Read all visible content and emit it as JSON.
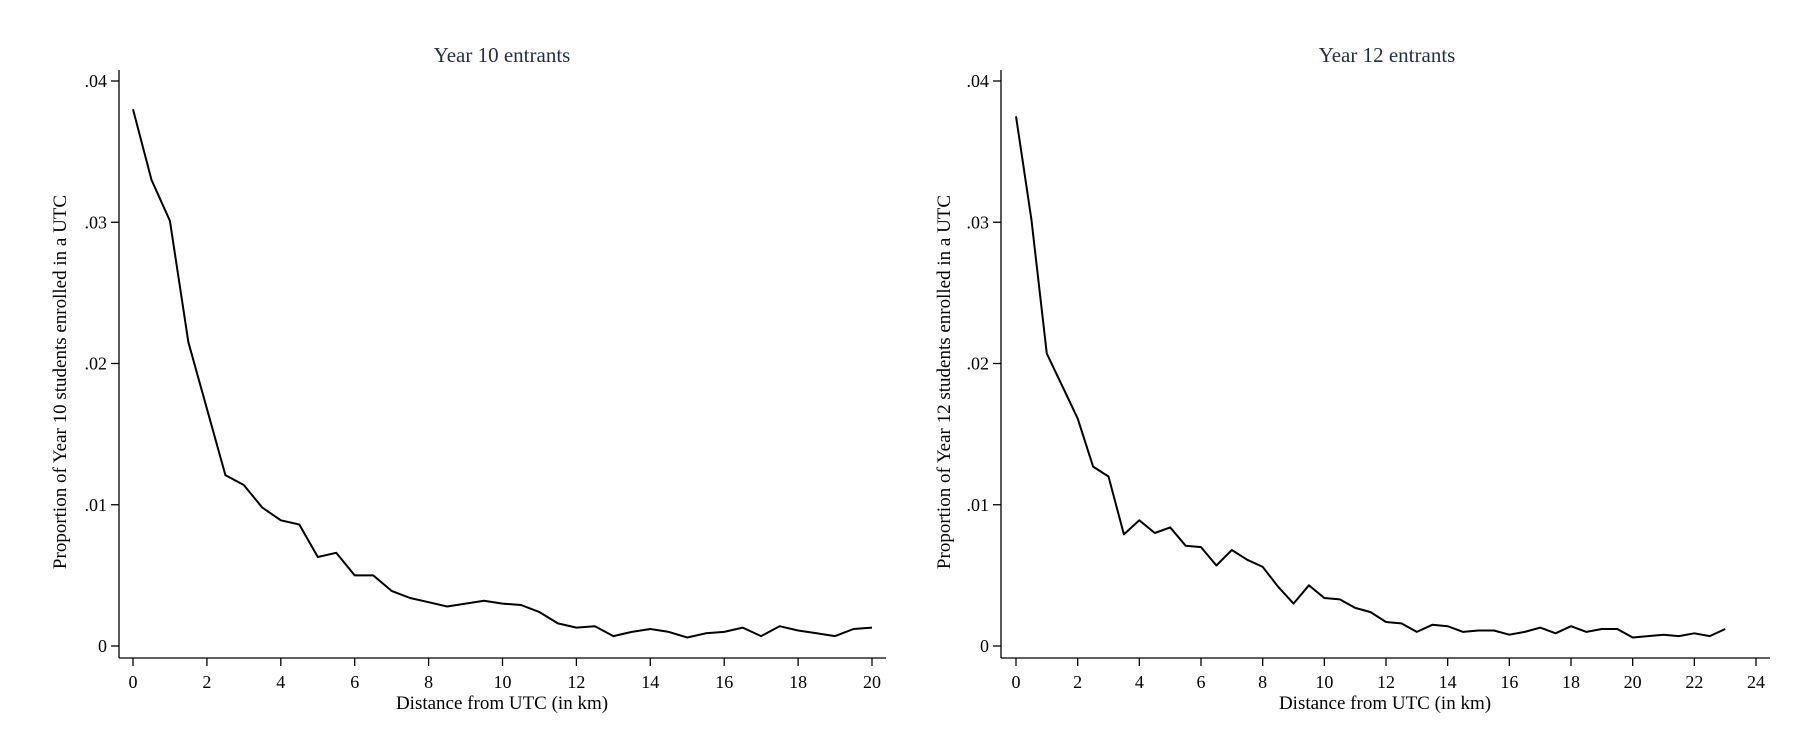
{
  "chart_data": [
    {
      "type": "line",
      "title": "Year 10 entrants",
      "xlabel": "Distance from UTC (in km)",
      "ylabel": "Proportion of Year 10 students enrolled in a UTC",
      "xlim": [
        0,
        20
      ],
      "ylim": [
        0,
        0.04
      ],
      "xticks": [
        0,
        2,
        4,
        6,
        8,
        10,
        12,
        14,
        16,
        18,
        20
      ],
      "xtick_labels": [
        "0",
        "2",
        "4",
        "6",
        "8",
        "10",
        "12",
        "14",
        "16",
        "18",
        "20"
      ],
      "yticks": [
        0,
        0.01,
        0.02,
        0.03,
        0.04
      ],
      "ytick_labels": [
        "0",
        ".01",
        ".02",
        ".03",
        ".04"
      ],
      "grid": false,
      "series": [
        {
          "x": [
            0,
            0.5,
            1,
            1.5,
            2,
            2.5,
            3,
            3.5,
            4,
            4.5,
            5,
            5.5,
            6,
            6.5,
            7,
            7.5,
            8,
            8.5,
            9,
            9.5,
            10,
            10.5,
            11,
            11.5,
            12,
            12.5,
            13,
            13.5,
            14,
            14.5,
            15,
            15.5,
            16,
            16.5,
            17,
            17.5,
            18,
            18.5,
            19,
            19.5,
            20
          ],
          "values": [
            0.038,
            0.033,
            0.0301,
            0.0215,
            0.0168,
            0.0121,
            0.0114,
            0.0098,
            0.0089,
            0.0086,
            0.0063,
            0.0066,
            0.005,
            0.005,
            0.0039,
            0.0034,
            0.0031,
            0.0028,
            0.003,
            0.0032,
            0.003,
            0.0029,
            0.0024,
            0.0016,
            0.0013,
            0.0014,
            0.0007,
            0.001,
            0.0012,
            0.001,
            0.0006,
            0.0009,
            0.001,
            0.0013,
            0.0007,
            0.0014,
            0.0011,
            0.0009,
            0.0007,
            0.0012,
            0.0013
          ]
        }
      ]
    },
    {
      "type": "line",
      "title": "Year 12 entrants",
      "xlabel": "Distance from UTC (in km)",
      "ylabel": "Proportion of Year 12 students enrolled in a UTC",
      "xlim": [
        0,
        24
      ],
      "ylim": [
        0,
        0.04
      ],
      "xticks": [
        0,
        2,
        4,
        6,
        8,
        10,
        12,
        14,
        16,
        18,
        20,
        22,
        24
      ],
      "xtick_labels": [
        "0",
        "2",
        "4",
        "6",
        "8",
        "10",
        "12",
        "14",
        "16",
        "18",
        "20",
        "22",
        "24"
      ],
      "yticks": [
        0,
        0.01,
        0.02,
        0.03,
        0.04
      ],
      "ytick_labels": [
        "0",
        ".01",
        ".02",
        ".03",
        ".04"
      ],
      "grid": false,
      "series": [
        {
          "x": [
            0,
            0.5,
            1,
            1.5,
            2,
            2.5,
            3,
            3.5,
            4,
            4.5,
            5,
            5.5,
            6,
            6.5,
            7,
            7.5,
            8,
            8.5,
            9,
            9.5,
            10,
            10.5,
            11,
            11.5,
            12,
            12.5,
            13,
            13.5,
            14,
            14.5,
            15,
            15.5,
            16,
            16.5,
            17,
            17.5,
            18,
            18.5,
            19,
            19.5,
            20,
            20.5,
            21,
            21.5,
            22,
            22.5,
            23
          ],
          "values": [
            0.0375,
            0.0302,
            0.0207,
            0.0184,
            0.0161,
            0.0127,
            0.012,
            0.0079,
            0.0089,
            0.008,
            0.0084,
            0.0071,
            0.007,
            0.0057,
            0.0068,
            0.0061,
            0.0056,
            0.0042,
            0.003,
            0.0043,
            0.0034,
            0.0033,
            0.0027,
            0.0024,
            0.0017,
            0.0016,
            0.001,
            0.0015,
            0.0014,
            0.001,
            0.0011,
            0.0011,
            0.0008,
            0.001,
            0.0013,
            0.0009,
            0.0014,
            0.001,
            0.0012,
            0.0012,
            0.0006,
            0.0007,
            0.0008,
            0.0007,
            0.0009,
            0.0007,
            0.0012
          ]
        }
      ]
    }
  ]
}
